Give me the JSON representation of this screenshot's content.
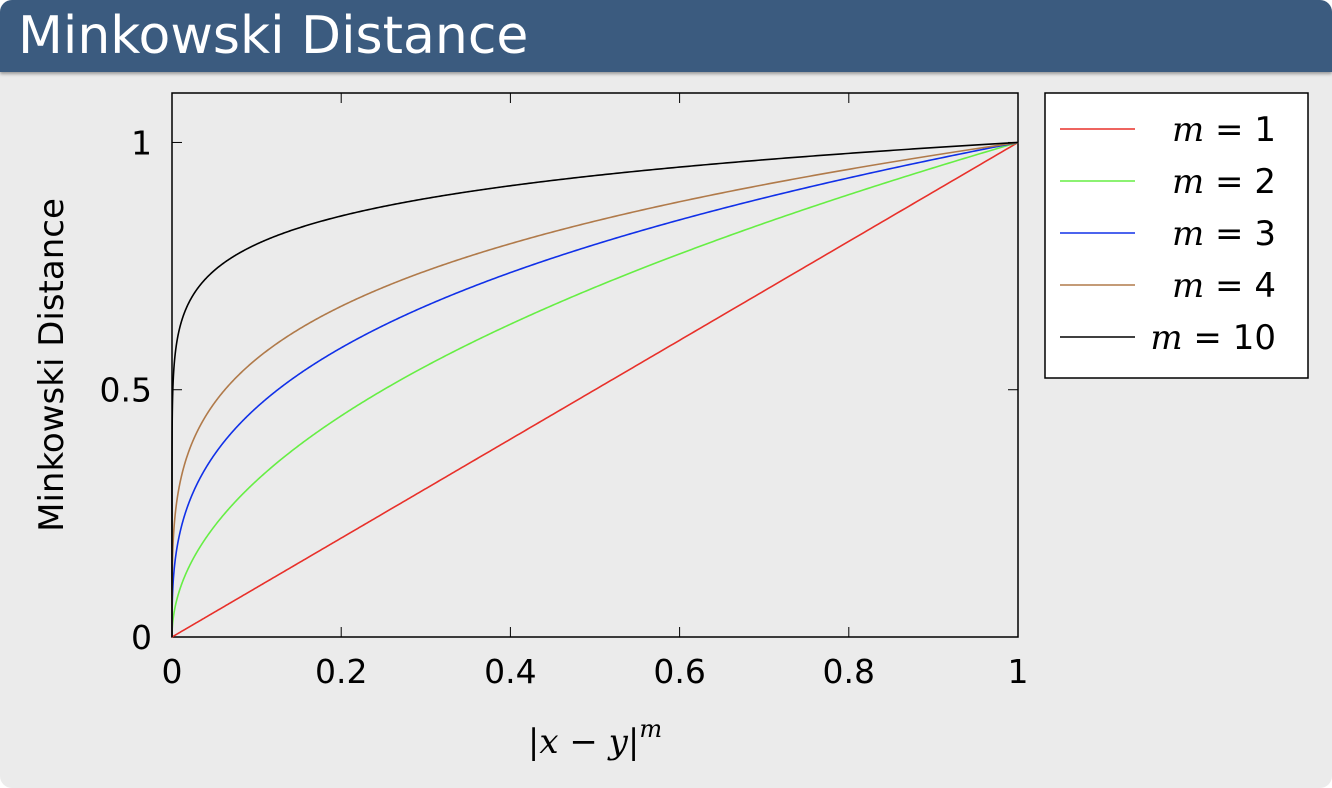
{
  "slide": {
    "title": "Minkowski Distance"
  },
  "chart_data": {
    "type": "line",
    "title": "",
    "xlabel": "|x − y|^m",
    "ylabel": "Minkowski Distance",
    "xlim": [
      0,
      1
    ],
    "ylim": [
      0,
      1.1
    ],
    "x_ticks": [
      "0",
      "0.2",
      "0.4",
      "0.6",
      "0.8",
      "1"
    ],
    "y_ticks": [
      "0",
      "0.5",
      "1"
    ],
    "x_tick_values": [
      0,
      0.2,
      0.4,
      0.6,
      0.8,
      1
    ],
    "y_tick_values": [
      0,
      0.5,
      1
    ],
    "grid": false,
    "legend_position": "outside-right-top",
    "function": "y = x^(1/m)",
    "x": [
      0,
      0.005,
      0.02,
      0.05,
      0.1,
      0.15,
      0.2,
      0.3,
      0.4,
      0.5,
      0.6,
      0.7,
      0.8,
      0.9,
      1.0
    ],
    "series": [
      {
        "name": "m = 1",
        "m": 1,
        "color": "#e8302a",
        "values": [
          0,
          0.005,
          0.02,
          0.05,
          0.1,
          0.15,
          0.2,
          0.3,
          0.4,
          0.5,
          0.6,
          0.7,
          0.8,
          0.9,
          1.0
        ]
      },
      {
        "name": "m = 2",
        "m": 2,
        "color": "#66ee44",
        "values": [
          0,
          0.071,
          0.141,
          0.224,
          0.316,
          0.387,
          0.447,
          0.548,
          0.632,
          0.707,
          0.775,
          0.837,
          0.894,
          0.949,
          1.0
        ]
      },
      {
        "name": "m = 3",
        "m": 3,
        "color": "#1030e8",
        "values": [
          0,
          0.171,
          0.271,
          0.368,
          0.464,
          0.531,
          0.585,
          0.669,
          0.737,
          0.794,
          0.843,
          0.888,
          0.928,
          0.965,
          1.0
        ]
      },
      {
        "name": "m = 4",
        "m": 4,
        "color": "#b07a4a",
        "values": [
          0,
          0.266,
          0.376,
          0.473,
          0.562,
          0.622,
          0.669,
          0.74,
          0.795,
          0.841,
          0.88,
          0.915,
          0.946,
          0.974,
          1.0
        ]
      },
      {
        "name": "m = 10",
        "m": 10,
        "color": "#000000",
        "values": [
          0,
          0.589,
          0.676,
          0.741,
          0.794,
          0.827,
          0.851,
          0.887,
          0.912,
          0.933,
          0.95,
          0.965,
          0.978,
          0.99,
          1.0
        ]
      }
    ]
  }
}
